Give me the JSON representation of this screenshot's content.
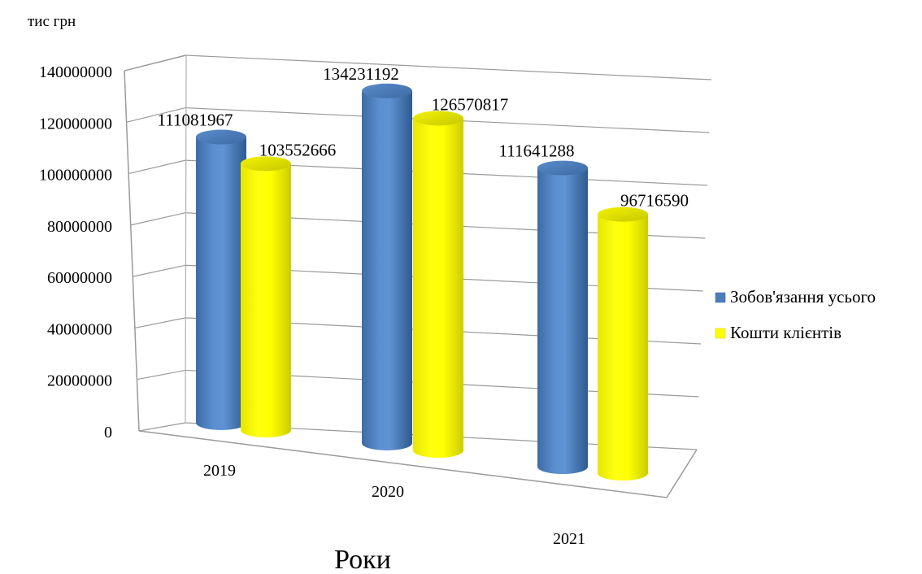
{
  "chart_data": {
    "type": "bar",
    "ylabel": "тис грн",
    "xlabel": "Роки",
    "categories": [
      "2019",
      "2020",
      "2021"
    ],
    "series": [
      {
        "name": "Зобов'язання усього",
        "values": [
          111081967,
          134231192,
          111641288
        ],
        "color": "#4a7ebb"
      },
      {
        "name": "Кошти клієнтів",
        "values": [
          103552666,
          126570817,
          96716590
        ],
        "color": "#ffff00"
      }
    ],
    "ylim": [
      0,
      140000000
    ],
    "yticks": [
      "0",
      "20000000",
      "40000000",
      "60000000",
      "80000000",
      "100000000",
      "120000000",
      "140000000"
    ],
    "grid": true,
    "legend_position": "right",
    "style": "3d-cylinder"
  }
}
